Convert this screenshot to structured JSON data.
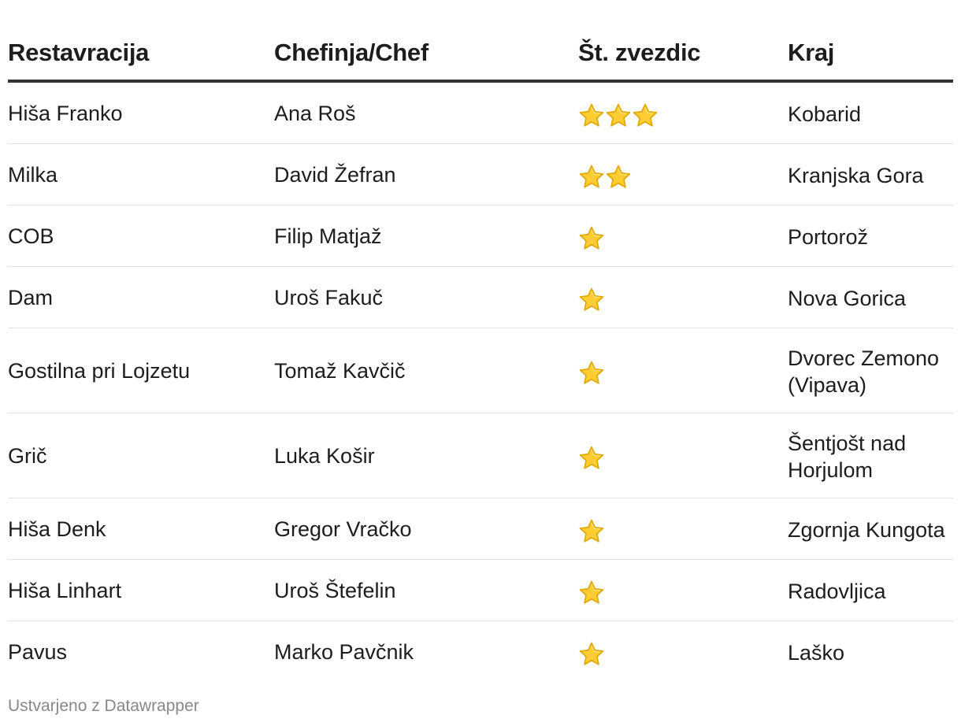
{
  "chart_data": {
    "type": "table",
    "columns": [
      "Restavracija",
      "Chefinja/Chef",
      "Št. zvezdic",
      "Kraj"
    ],
    "rows": [
      {
        "restavracija": "Hiša Franko",
        "chef": "Ana Roš",
        "zvezdice": 3,
        "kraj": "Kobarid"
      },
      {
        "restavracija": "Milka",
        "chef": "David Žefran",
        "zvezdice": 2,
        "kraj": "Kranjska Gora"
      },
      {
        "restavracija": "COB",
        "chef": "Filip Matjaž",
        "zvezdice": 1,
        "kraj": "Portorož"
      },
      {
        "restavracija": "Dam",
        "chef": "Uroš Fakuč",
        "zvezdice": 1,
        "kraj": "Nova Gorica"
      },
      {
        "restavracija": "Gostilna pri Lojzetu",
        "chef": "Tomaž Kavčič",
        "zvezdice": 1,
        "kraj": "Dvorec Zemono (Vipava)"
      },
      {
        "restavracija": "Grič",
        "chef": "Luka Košir",
        "zvezdice": 1,
        "kraj": "Šentjošt nad Horjulom"
      },
      {
        "restavracija": "Hiša Denk",
        "chef": "Gregor Vračko",
        "zvezdice": 1,
        "kraj": "Zgornja Kungota"
      },
      {
        "restavracija": "Hiša Linhart",
        "chef": "Uroš Štefelin",
        "zvezdice": 1,
        "kraj": "Radovljica"
      },
      {
        "restavracija": "Pavus",
        "chef": "Marko Pavčnik",
        "zvezdice": 1,
        "kraj": "Laško"
      }
    ]
  },
  "icons": {
    "star": "star-icon"
  },
  "colors": {
    "star_fill": "#FFCC33",
    "star_stroke": "#E0A800",
    "header_rule": "#333333",
    "row_rule": "#e2e2e2",
    "footer_text": "#888888"
  },
  "footer": {
    "credit": "Ustvarjeno z Datawrapper"
  }
}
